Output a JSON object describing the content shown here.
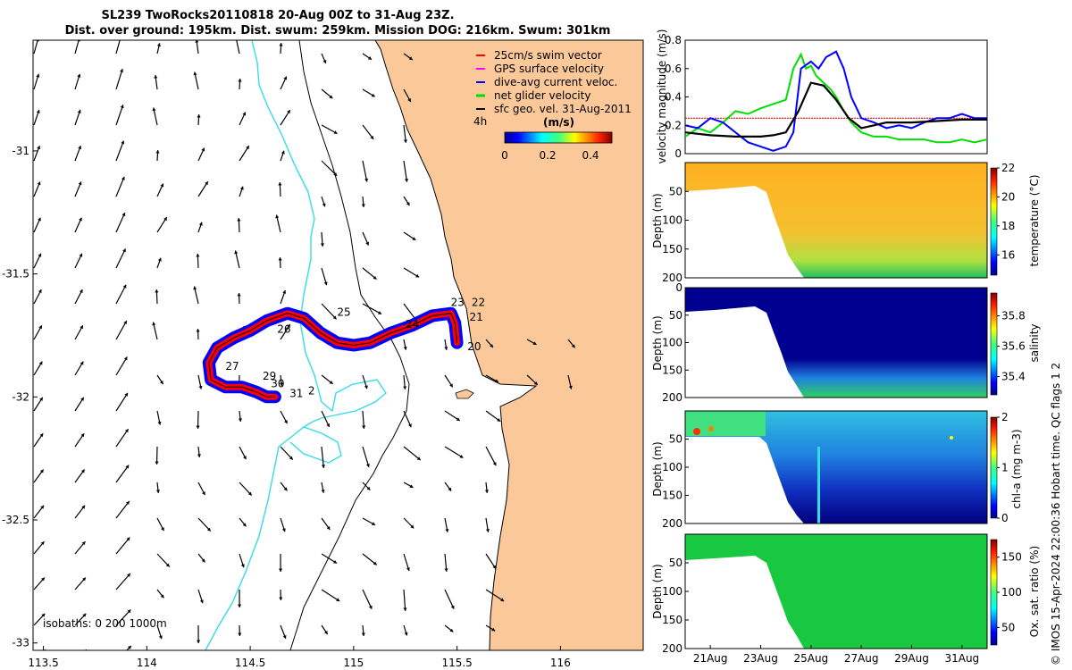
{
  "title": {
    "line1": "SL239 TwoRocks20110818 20-Aug 00Z to 31-Aug 23Z.",
    "line2": "Dist. over ground: 195km. Dist. swum: 259km. Mission DOG: 216km. Swum: 301km"
  },
  "colors": {
    "land": "#fbc89a",
    "ocean": "#ffffff",
    "isobath_0": "#000000",
    "isobath_200": "#33dde8",
    "isobath_1000": "#000000",
    "swim_vector": "#ff0000",
    "gps_velocity": "#ff00ff",
    "dive_avg": "#0000ff",
    "net_glider": "#00e000",
    "sfc_geo": "#000000"
  },
  "chart_data": [
    {
      "type": "map",
      "name": "trajectory-map",
      "xlim": [
        113.45,
        116.4
      ],
      "ylim": [
        -33.03,
        -30.55
      ],
      "x_ticks": [
        113.5,
        114,
        114.5,
        115,
        115.5,
        116
      ],
      "x_tick_labels": [
        "113.5",
        "114",
        "114.5",
        "115",
        "115.5",
        "116"
      ],
      "y_ticks": [
        -31,
        -31.5,
        -32,
        -32.5,
        -33
      ],
      "y_tick_labels": [
        "-31",
        "-31.5",
        "-32",
        "-32.5",
        "-33"
      ],
      "legend": {
        "placement": "top-right",
        "entries": [
          "25cm/s swim vector",
          "GPS surface velocity",
          "dive-avg current veloc.",
          "net glider velocity",
          "sfc geo. vel. 31-Aug-2011"
        ],
        "interval_label": "4h",
        "unit_label": "(m/s)",
        "colorbar_ticks": [
          0,
          0.2,
          0.4
        ],
        "colorbar_tick_labels": [
          "0",
          "0.2",
          "0.4"
        ],
        "colorbar_range": [
          0,
          0.5
        ]
      },
      "isobaths_label": "isobaths: 0   200  1000m",
      "track": [
        [
          115.5,
          -31.78
        ],
        [
          115.49,
          -31.7
        ],
        [
          115.47,
          -31.66
        ],
        [
          115.38,
          -31.67
        ],
        [
          115.28,
          -31.71
        ],
        [
          115.18,
          -31.74
        ],
        [
          115.08,
          -31.78
        ],
        [
          115.0,
          -31.79
        ],
        [
          114.92,
          -31.78
        ],
        [
          114.84,
          -31.74
        ],
        [
          114.76,
          -31.68
        ],
        [
          114.68,
          -31.66
        ],
        [
          114.58,
          -31.69
        ],
        [
          114.5,
          -31.73
        ],
        [
          114.42,
          -31.76
        ],
        [
          114.34,
          -31.8
        ],
        [
          114.3,
          -31.86
        ],
        [
          114.31,
          -31.93
        ],
        [
          114.38,
          -31.96
        ],
        [
          114.46,
          -31.96
        ],
        [
          114.53,
          -31.98
        ],
        [
          114.58,
          -32.0
        ],
        [
          114.62,
          -32.0
        ]
      ],
      "day_labels": [
        {
          "text": "20",
          "lon": 115.55,
          "lat": -31.81
        },
        {
          "text": "21",
          "lon": 115.56,
          "lat": -31.69
        },
        {
          "text": "22",
          "lon": 115.57,
          "lat": -31.63
        },
        {
          "text": "23",
          "lon": 115.47,
          "lat": -31.63
        },
        {
          "text": "24",
          "lon": 115.25,
          "lat": -31.72
        },
        {
          "text": "25",
          "lon": 114.92,
          "lat": -31.67
        },
        {
          "text": "26",
          "lon": 114.63,
          "lat": -31.74
        },
        {
          "text": "27",
          "lon": 114.38,
          "lat": -31.89
        },
        {
          "text": "29",
          "lon": 114.56,
          "lat": -31.93
        },
        {
          "text": "30",
          "lon": 114.6,
          "lat": -31.96
        },
        {
          "text": "31",
          "lon": 114.69,
          "lat": -32.0
        },
        {
          "text": "2",
          "lon": 114.78,
          "lat": -31.99
        }
      ]
    },
    {
      "type": "line",
      "name": "velocity-magnitude",
      "ylabel": "velocity magnitude (m/s)",
      "ylim": [
        0,
        0.8
      ],
      "y_ticks": [
        0,
        0.2,
        0.4,
        0.6,
        0.8
      ],
      "y_tick_labels": [
        "0",
        "0.2",
        "0.4",
        "0.6",
        "0.8"
      ],
      "xlim": [
        20.0,
        32.0
      ],
      "series": [
        {
          "color": "#ff0000",
          "x": [
            20.0,
            32.0
          ],
          "y": [
            0.25,
            0.25
          ]
        },
        {
          "color": "#00e000",
          "x": [
            20.0,
            20.5,
            21.0,
            21.5,
            22.0,
            22.5,
            23.0,
            23.5,
            24.0,
            24.3,
            24.6,
            24.8,
            25.0,
            25.2,
            25.5,
            25.8,
            26.0,
            26.3,
            26.6,
            27.0,
            27.5,
            28.0,
            28.5,
            29.0,
            29.5,
            30.0,
            30.5,
            31.0,
            31.5,
            32.0
          ],
          "y": [
            0.12,
            0.18,
            0.15,
            0.22,
            0.3,
            0.28,
            0.32,
            0.35,
            0.38,
            0.6,
            0.7,
            0.6,
            0.62,
            0.55,
            0.5,
            0.45,
            0.4,
            0.3,
            0.22,
            0.15,
            0.12,
            0.12,
            0.1,
            0.1,
            0.1,
            0.08,
            0.08,
            0.1,
            0.08,
            0.1
          ]
        },
        {
          "color": "#0000ff",
          "x": [
            20.0,
            20.5,
            21.0,
            21.5,
            22.0,
            22.5,
            23.0,
            23.5,
            24.0,
            24.3,
            24.6,
            25.0,
            25.3,
            25.6,
            26.0,
            26.3,
            26.6,
            27.0,
            27.5,
            28.0,
            28.5,
            29.0,
            29.5,
            30.0,
            30.5,
            31.0,
            31.5,
            32.0
          ],
          "y": [
            0.2,
            0.18,
            0.25,
            0.22,
            0.15,
            0.08,
            0.05,
            0.02,
            0.05,
            0.15,
            0.6,
            0.65,
            0.6,
            0.68,
            0.72,
            0.6,
            0.4,
            0.25,
            0.22,
            0.18,
            0.2,
            0.18,
            0.22,
            0.25,
            0.25,
            0.28,
            0.25,
            0.25
          ]
        },
        {
          "color": "#000000",
          "x": [
            20.0,
            21.0,
            22.0,
            23.0,
            23.5,
            24.0,
            24.5,
            25.0,
            25.5,
            26.0,
            26.5,
            27.0,
            27.5,
            28.0,
            29.0,
            30.0,
            31.0,
            32.0
          ],
          "y": [
            0.15,
            0.13,
            0.12,
            0.12,
            0.13,
            0.15,
            0.3,
            0.5,
            0.48,
            0.38,
            0.25,
            0.18,
            0.2,
            0.22,
            0.22,
            0.23,
            0.24,
            0.24
          ]
        }
      ]
    },
    {
      "type": "heatmap",
      "name": "temperature-section",
      "ylabel": "Depth (m)",
      "cbar_label": "temperature (°C)",
      "cbar_ticks": [
        16,
        18,
        20,
        22
      ],
      "cbar_tick_labels": [
        "16",
        "18",
        "20",
        "22"
      ],
      "crange": [
        14.6,
        22
      ],
      "y_ticks": [
        50,
        100,
        150,
        200
      ],
      "y_tick_labels": [
        "50",
        "100",
        "150",
        "200"
      ]
    },
    {
      "type": "heatmap",
      "name": "salinity-section",
      "ylabel": "Depth (m)",
      "cbar_label": "salinity",
      "cbar_ticks": [
        35.4,
        35.6,
        35.8
      ],
      "cbar_tick_labels": [
        "35.4",
        "35.6",
        "35.8"
      ],
      "crange": [
        35.28,
        35.95
      ],
      "y_ticks": [
        0,
        50,
        100,
        150,
        200
      ],
      "y_tick_labels": [
        "0",
        "50",
        "100",
        "150",
        "200"
      ]
    },
    {
      "type": "heatmap",
      "name": "chlorophyll-section",
      "ylabel": "Depth (m)",
      "cbar_label": "chl-a (mg m-3)",
      "cbar_ticks": [
        0,
        1,
        2
      ],
      "cbar_tick_labels": [
        "0",
        "1",
        "2"
      ],
      "crange": [
        0,
        2
      ],
      "y_ticks": [
        50,
        100,
        150,
        200
      ],
      "y_tick_labels": [
        "50",
        "100",
        "150",
        "200"
      ]
    },
    {
      "type": "heatmap",
      "name": "oxygen-section",
      "ylabel": "Depth (m)",
      "cbar_label": "Ox. sat. ratio (%)",
      "cbar_ticks": [
        50,
        100,
        150
      ],
      "cbar_tick_labels": [
        "50",
        "100",
        "150"
      ],
      "crange": [
        25,
        175
      ],
      "y_ticks": [
        50,
        100,
        150,
        200
      ],
      "y_tick_labels": [
        "50",
        "100",
        "150",
        "200"
      ],
      "x_ticks": [
        21,
        23,
        25,
        27,
        29,
        31
      ],
      "x_tick_labels": [
        "21Aug",
        "23Aug",
        "25Aug",
        "27Aug",
        "29Aug",
        "31Aug"
      ]
    }
  ],
  "credit": "© IMOS 15-Apr-2024 22:00:36 Hobart time. QC flags 1  2"
}
